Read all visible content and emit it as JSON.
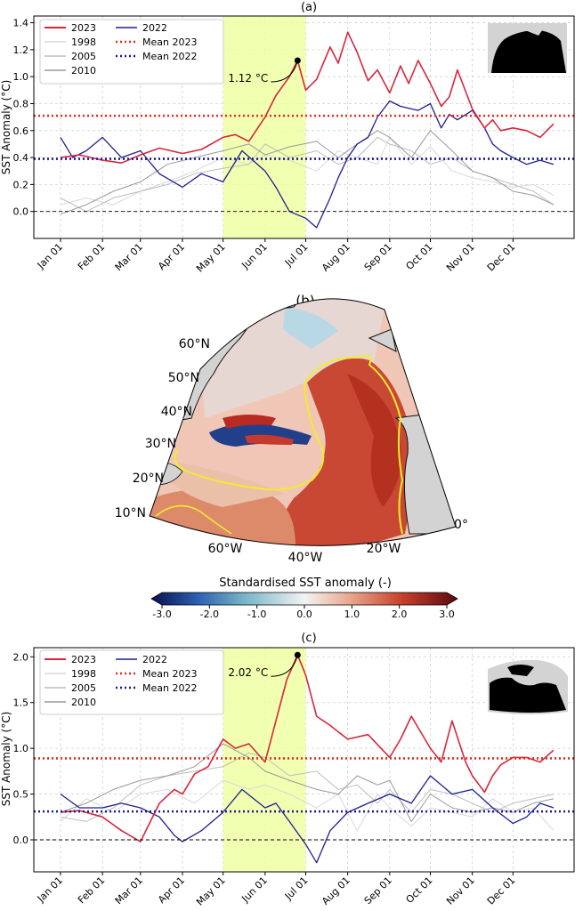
{
  "panels": {
    "a": {
      "label": "(a)"
    },
    "b": {
      "label": "(b)"
    },
    "c": {
      "label": "(c)"
    }
  },
  "ylabel": "SST Anomaly (°C)",
  "months": [
    "Jan 01",
    "Feb 01",
    "Mar 01",
    "Apr 01",
    "May 01",
    "Jun 01",
    "Jul 01",
    "Aug 01",
    "Sep 01",
    "Oct 01",
    "Nov 01",
    "Dec 01"
  ],
  "colors": {
    "y2023": "#d7263d",
    "y2022": "#1f1f8f",
    "y1998": "#d8d8d8",
    "y2005": "#bdbdbd",
    "y2010": "#999999",
    "highlight": "#ecff9c",
    "mean2023": "#e8281c",
    "mean2022": "#1a1a8a",
    "land": "#d3d3d3",
    "coast": "#111111",
    "contour": "#f2ec2c"
  },
  "chart_data": [
    {
      "panel": "(a)",
      "type": "line",
      "ylabel": "SST Anomaly (°C)",
      "xlabel": "",
      "ylim": [
        -0.2,
        1.45
      ],
      "yticks": [
        0.0,
        0.2,
        0.4,
        0.6,
        0.8,
        1.0,
        1.2,
        1.4
      ],
      "x_ticks": [
        "Jan 01",
        "Feb 01",
        "Mar 01",
        "Apr 01",
        "May 01",
        "Jun 01",
        "Jul 01",
        "Aug 01",
        "Sep 01",
        "Oct 01",
        "Nov 01",
        "Dec 01"
      ],
      "grid": true,
      "legend": "top-left",
      "highlight_period": [
        "May 01",
        "Jul 01"
      ],
      "annotation": {
        "text": "1.12 °C",
        "x": "Jun 25",
        "y": 1.12
      },
      "series": [
        {
          "name": "2023",
          "key": "y2023",
          "width": 1.6,
          "x": [
            1,
            15,
            32,
            46,
            60,
            74,
            91,
            105,
            121,
            130,
            140,
            152,
            160,
            170,
            176,
            182,
            190,
            200,
            206,
            213,
            220,
            228,
            235,
            244,
            252,
            258,
            265,
            274,
            282,
            288,
            294,
            305,
            314,
            320,
            326,
            335,
            345,
            355,
            365
          ],
          "values": [
            0.4,
            0.42,
            0.38,
            0.36,
            0.42,
            0.47,
            0.43,
            0.46,
            0.55,
            0.57,
            0.52,
            0.7,
            0.86,
            1.0,
            1.12,
            0.9,
            0.98,
            1.22,
            1.1,
            1.33,
            1.18,
            0.97,
            1.05,
            0.88,
            1.08,
            0.95,
            1.12,
            0.95,
            0.78,
            0.85,
            1.05,
            0.76,
            0.62,
            0.68,
            0.6,
            0.62,
            0.6,
            0.55,
            0.65
          ]
        },
        {
          "name": "2022",
          "key": "y2022",
          "width": 1.3,
          "x": [
            1,
            10,
            20,
            32,
            46,
            60,
            74,
            91,
            105,
            121,
            135,
            152,
            160,
            170,
            182,
            190,
            200,
            206,
            213,
            220,
            228,
            235,
            244,
            252,
            265,
            274,
            282,
            288,
            294,
            305,
            314,
            320,
            326,
            335,
            345,
            355,
            365
          ],
          "values": [
            0.55,
            0.4,
            0.45,
            0.55,
            0.4,
            0.45,
            0.28,
            0.18,
            0.28,
            0.22,
            0.45,
            0.3,
            0.18,
            0.0,
            -0.05,
            -0.12,
            0.1,
            0.25,
            0.4,
            0.5,
            0.55,
            0.7,
            0.82,
            0.78,
            0.75,
            0.8,
            0.62,
            0.72,
            0.68,
            0.75,
            0.62,
            0.5,
            0.45,
            0.4,
            0.35,
            0.38,
            0.35
          ]
        },
        {
          "name": "1998",
          "key": "y1998",
          "width": 1.0,
          "x": [
            1,
            20,
            40,
            60,
            80,
            100,
            121,
            140,
            152,
            170,
            190,
            206,
            220,
            235,
            244,
            260,
            274,
            290,
            305,
            320,
            335,
            350,
            365
          ],
          "values": [
            0.05,
            0.1,
            0.05,
            0.15,
            0.22,
            0.3,
            0.4,
            0.35,
            0.42,
            0.38,
            0.3,
            0.45,
            0.4,
            0.35,
            0.55,
            0.35,
            0.48,
            0.3,
            0.25,
            0.22,
            0.18,
            0.2,
            0.12
          ]
        },
        {
          "name": "2005",
          "key": "y2005",
          "width": 1.0,
          "x": [
            1,
            20,
            40,
            60,
            80,
            100,
            121,
            140,
            152,
            170,
            190,
            206,
            220,
            235,
            244,
            260,
            274,
            290,
            305,
            320,
            335,
            350,
            365
          ],
          "values": [
            0.1,
            0.0,
            0.1,
            0.15,
            0.2,
            0.28,
            0.32,
            0.35,
            0.5,
            0.4,
            0.45,
            0.35,
            0.4,
            0.55,
            0.5,
            0.45,
            0.35,
            0.4,
            0.3,
            0.25,
            0.2,
            0.15,
            0.05
          ]
        },
        {
          "name": "2010",
          "key": "y2010",
          "width": 1.0,
          "x": [
            1,
            20,
            40,
            60,
            80,
            100,
            121,
            140,
            152,
            170,
            190,
            206,
            220,
            235,
            244,
            260,
            274,
            290,
            305,
            320,
            335,
            350,
            365
          ],
          "values": [
            -0.02,
            0.05,
            0.15,
            0.22,
            0.35,
            0.4,
            0.45,
            0.5,
            0.42,
            0.48,
            0.52,
            0.4,
            0.5,
            0.6,
            0.55,
            0.4,
            0.6,
            0.45,
            0.3,
            0.25,
            0.15,
            0.12,
            0.05
          ]
        }
      ],
      "hlines": [
        {
          "name": "Mean 2023",
          "key": "mean2023",
          "y": 0.71,
          "style": "dotted"
        },
        {
          "name": "Mean 2022",
          "key": "mean2022",
          "y": 0.39,
          "style": "dotted"
        },
        {
          "name": "",
          "key": "zero",
          "y": 0.0,
          "style": "dashed"
        }
      ]
    },
    {
      "panel": "(b)",
      "type": "heatmap",
      "colorbar_label": "Standardised SST anomaly (-)",
      "colorbar_ticks": [
        "-3.0",
        "-2.0",
        "-1.0",
        "0.0",
        "1.0",
        "2.0",
        "3.0"
      ],
      "colorbar_range": [
        -3.0,
        3.0
      ],
      "lat_labels": [
        "60°N",
        "50°N",
        "40°N",
        "30°N",
        "20°N",
        "10°N"
      ],
      "lon_labels": [
        "60°W",
        "40°W",
        "20°W",
        "0°"
      ]
    },
    {
      "panel": "(c)",
      "type": "line",
      "ylabel": "SST Anomaly (°C)",
      "xlabel": "",
      "ylim": [
        -0.35,
        2.1
      ],
      "yticks": [
        0.0,
        0.5,
        1.0,
        1.5,
        2.0
      ],
      "x_ticks": [
        "Jan 01",
        "Feb 01",
        "Mar 01",
        "Apr 01",
        "May 01",
        "Jun 01",
        "Jul 01",
        "Aug 01",
        "Sep 01",
        "Oct 01",
        "Nov 01",
        "Dec 01"
      ],
      "grid": true,
      "legend": "top-left",
      "highlight_period": [
        "May 01",
        "Jul 01"
      ],
      "annotation": {
        "text": "2.02 °C",
        "x": "Jun 25",
        "y": 2.02
      },
      "series": [
        {
          "name": "2023",
          "key": "y2023",
          "width": 1.6,
          "x": [
            1,
            15,
            32,
            46,
            60,
            74,
            85,
            91,
            100,
            110,
            121,
            130,
            140,
            152,
            160,
            168,
            176,
            182,
            190,
            200,
            213,
            228,
            244,
            252,
            260,
            274,
            282,
            290,
            300,
            305,
            314,
            320,
            326,
            335,
            345,
            355,
            365
          ],
          "values": [
            0.3,
            0.32,
            0.25,
            0.1,
            -0.02,
            0.4,
            0.55,
            0.5,
            0.72,
            0.8,
            1.1,
            1.0,
            1.05,
            0.85,
            1.3,
            1.75,
            2.02,
            1.8,
            1.35,
            1.25,
            1.1,
            1.15,
            0.9,
            1.1,
            1.35,
            1.0,
            0.85,
            1.3,
            0.85,
            0.7,
            0.52,
            0.7,
            0.82,
            0.9,
            0.9,
            0.85,
            0.98
          ]
        },
        {
          "name": "2022",
          "key": "y2022",
          "width": 1.3,
          "x": [
            1,
            15,
            32,
            46,
            60,
            74,
            85,
            91,
            105,
            121,
            135,
            152,
            160,
            170,
            182,
            190,
            200,
            213,
            228,
            244,
            260,
            274,
            290,
            305,
            320,
            335,
            345,
            355,
            365
          ],
          "values": [
            0.5,
            0.35,
            0.35,
            0.4,
            0.35,
            0.25,
            0.05,
            -0.02,
            0.1,
            0.3,
            0.55,
            0.35,
            0.4,
            0.2,
            -0.05,
            -0.25,
            0.1,
            0.3,
            0.4,
            0.5,
            0.4,
            0.7,
            0.5,
            0.55,
            0.35,
            0.18,
            0.25,
            0.4,
            0.35
          ]
        },
        {
          "name": "1998",
          "key": "y1998",
          "width": 1.0,
          "x": [
            1,
            20,
            40,
            60,
            80,
            100,
            121,
            140,
            152,
            170,
            190,
            206,
            220,
            235,
            244,
            260,
            274,
            290,
            305,
            320,
            335,
            350,
            365
          ],
          "values": [
            0.2,
            0.45,
            0.3,
            0.5,
            0.55,
            0.4,
            0.65,
            0.55,
            0.6,
            0.5,
            0.35,
            0.5,
            0.1,
            0.5,
            0.35,
            0.15,
            0.35,
            0.3,
            0.25,
            0.45,
            0.3,
            0.35,
            0.1
          ]
        },
        {
          "name": "2005",
          "key": "y2005",
          "width": 1.0,
          "x": [
            1,
            20,
            40,
            60,
            80,
            100,
            121,
            140,
            152,
            170,
            190,
            206,
            220,
            235,
            244,
            260,
            274,
            290,
            305,
            320,
            335,
            350,
            365
          ],
          "values": [
            0.25,
            0.2,
            0.35,
            0.6,
            0.7,
            0.75,
            0.8,
            0.95,
            0.9,
            0.7,
            0.75,
            0.55,
            0.6,
            0.4,
            0.55,
            0.3,
            0.55,
            0.5,
            0.4,
            0.3,
            0.4,
            0.45,
            0.5
          ]
        },
        {
          "name": "2010",
          "key": "y2010",
          "width": 1.0,
          "x": [
            1,
            20,
            40,
            60,
            80,
            100,
            121,
            140,
            152,
            170,
            190,
            206,
            220,
            235,
            244,
            260,
            274,
            290,
            305,
            320,
            335,
            350,
            365
          ],
          "values": [
            0.3,
            0.4,
            0.55,
            0.65,
            0.7,
            0.8,
            1.05,
            0.9,
            0.75,
            0.65,
            0.55,
            0.5,
            0.7,
            0.6,
            0.65,
            0.2,
            0.5,
            0.35,
            0.3,
            0.35,
            0.3,
            0.4,
            0.45
          ]
        }
      ],
      "hlines": [
        {
          "name": "Mean 2023",
          "key": "mean2023",
          "y": 0.89,
          "style": "dotted"
        },
        {
          "name": "Mean 2022",
          "key": "mean2022",
          "y": 0.31,
          "style": "dotted"
        },
        {
          "name": "",
          "key": "zero",
          "y": 0.0,
          "style": "dashed"
        }
      ]
    }
  ]
}
